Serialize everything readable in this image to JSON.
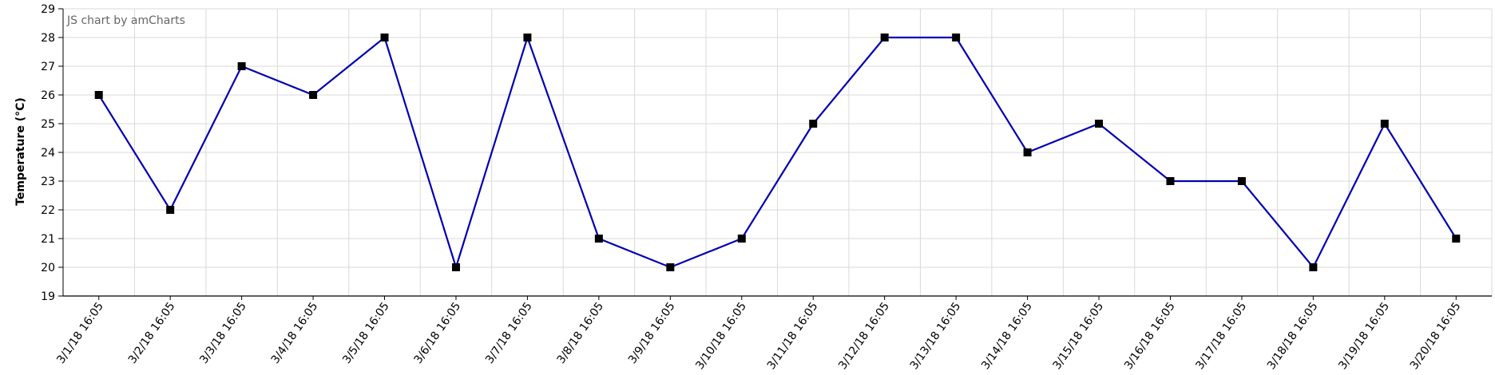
{
  "credit": "JS chart by amCharts",
  "colors": {
    "line": "#0000b3",
    "marker": "#000000",
    "grid": "#d9d9d9",
    "axis": "#000000"
  },
  "chart_data": {
    "type": "line",
    "ylabel": "Temperature (°C)",
    "xlabel": "",
    "ylim": [
      19,
      29
    ],
    "yticks": [
      19,
      20,
      21,
      22,
      23,
      24,
      25,
      26,
      27,
      28,
      29
    ],
    "grid": true,
    "marker": "square",
    "categories": [
      "3/1/18 16:05",
      "3/2/18 16:05",
      "3/3/18 16:05",
      "3/4/18 16:05",
      "3/5/18 16:05",
      "3/6/18 16:05",
      "3/7/18 16:05",
      "3/8/18 16:05",
      "3/9/18 16:05",
      "3/10/18 16:05",
      "3/11/18 16:05",
      "3/12/18 16:05",
      "3/13/18 16:05",
      "3/14/18 16:05",
      "3/15/18 16:05",
      "3/16/18 16:05",
      "3/17/18 16:05",
      "3/18/18 16:05",
      "3/19/18 16:05",
      "3/20/18 16:05"
    ],
    "series": [
      {
        "values": [
          26,
          22,
          27,
          26,
          28,
          20,
          28,
          21,
          20,
          21,
          25,
          28,
          28,
          24,
          25,
          23,
          23,
          20,
          25,
          21
        ]
      }
    ]
  }
}
